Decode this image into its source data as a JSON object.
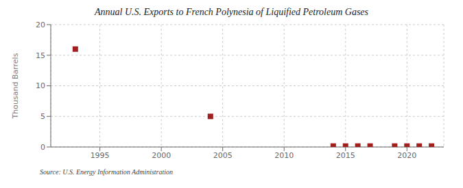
{
  "chart_data": {
    "type": "scatter",
    "title": "Annual U.S. Exports to French Polynesia of Liquified Petroleum Gases",
    "y_label": "Thousand Barrels",
    "source": "Source: U.S. Energy Information Administration",
    "x": [
      1993,
      2004,
      2014,
      2015,
      2016,
      2017,
      2019,
      2020,
      2021,
      2022
    ],
    "values": [
      16,
      5,
      0.15,
      0.15,
      0.15,
      0.15,
      0.15,
      0.15,
      0.15,
      0.15
    ],
    "color": "#a02020",
    "marker": "square",
    "xlim": [
      1991,
      2023
    ],
    "xticks": [
      1995,
      2000,
      2005,
      2010,
      2015,
      2020
    ],
    "ylim": [
      0,
      20
    ],
    "yticks": [
      0,
      5,
      10,
      15,
      20
    ],
    "grid": true
  }
}
